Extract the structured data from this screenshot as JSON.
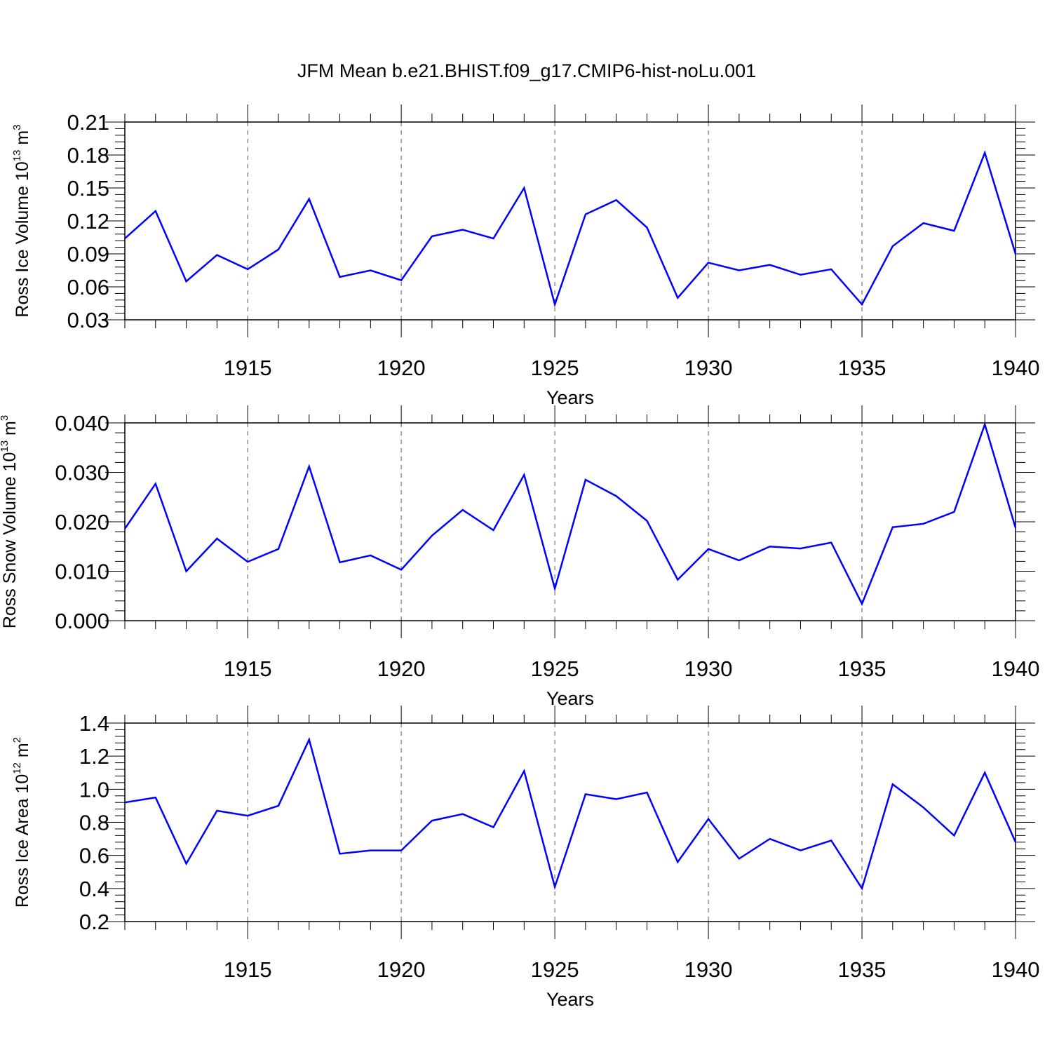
{
  "figure": {
    "title": "JFM Mean b.e21.BHIST.f09_g17.CMIP6-hist-noLu.001"
  },
  "chart_data": [
    {
      "type": "line",
      "ylabel": {
        "prefix": "Ross Ice Volume 10",
        "exp": "13",
        "unit": " m",
        "unit_exp": "3"
      },
      "xlabel": "Years",
      "xlim": [
        1911,
        1940
      ],
      "ylim": [
        0.03,
        0.21
      ],
      "xticks": [
        1915,
        1920,
        1925,
        1930,
        1935,
        1940
      ],
      "yticks": [
        "0.03",
        "0.06",
        "0.09",
        "0.12",
        "0.15",
        "0.18",
        "0.21"
      ],
      "ytick_values": [
        0.03,
        0.06,
        0.09,
        0.12,
        0.15,
        0.18,
        0.21
      ],
      "grid": "vertical dashed at labelled years",
      "color": "#0000ff",
      "x": [
        1911,
        1912,
        1913,
        1914,
        1915,
        1916,
        1917,
        1918,
        1919,
        1920,
        1921,
        1922,
        1923,
        1924,
        1925,
        1926,
        1927,
        1928,
        1929,
        1930,
        1931,
        1932,
        1933,
        1934,
        1935,
        1936,
        1937,
        1938,
        1939,
        1940
      ],
      "values": [
        0.104,
        0.129,
        0.065,
        0.089,
        0.076,
        0.094,
        0.14,
        0.069,
        0.075,
        0.066,
        0.106,
        0.112,
        0.104,
        0.15,
        0.044,
        0.126,
        0.139,
        0.114,
        0.05,
        0.082,
        0.075,
        0.08,
        0.071,
        0.076,
        0.044,
        0.097,
        0.118,
        0.111,
        0.182,
        0.09
      ]
    },
    {
      "type": "line",
      "ylabel": {
        "prefix": "Ross Snow Volume 10",
        "exp": "13",
        "unit": " m",
        "unit_exp": "3"
      },
      "xlabel": "Years",
      "xlim": [
        1911,
        1940
      ],
      "ylim": [
        0.0,
        0.04
      ],
      "xticks": [
        1915,
        1920,
        1925,
        1930,
        1935,
        1940
      ],
      "yticks": [
        "0.000",
        "0.010",
        "0.020",
        "0.030",
        "0.040"
      ],
      "ytick_values": [
        0.0,
        0.01,
        0.02,
        0.03,
        0.04
      ],
      "grid": "vertical dashed at labelled years",
      "color": "#0000ff",
      "x": [
        1911,
        1912,
        1913,
        1914,
        1915,
        1916,
        1917,
        1918,
        1919,
        1920,
        1921,
        1922,
        1923,
        1924,
        1925,
        1926,
        1927,
        1928,
        1929,
        1930,
        1931,
        1932,
        1933,
        1934,
        1935,
        1936,
        1937,
        1938,
        1939,
        1940
      ],
      "values": [
        0.0186,
        0.0277,
        0.01,
        0.0166,
        0.0119,
        0.0145,
        0.0312,
        0.0118,
        0.0132,
        0.0103,
        0.0172,
        0.0224,
        0.0183,
        0.0295,
        0.0065,
        0.0285,
        0.0252,
        0.0202,
        0.0083,
        0.0145,
        0.0122,
        0.015,
        0.0146,
        0.0158,
        0.0034,
        0.0189,
        0.0196,
        0.022,
        0.0397,
        0.0188
      ]
    },
    {
      "type": "line",
      "ylabel": {
        "prefix": "Ross Ice Area 10",
        "exp": "12",
        "unit": " m",
        "unit_exp": "2"
      },
      "xlabel": "Years",
      "xlim": [
        1911,
        1940
      ],
      "ylim": [
        0.2,
        1.4
      ],
      "xticks": [
        1915,
        1920,
        1925,
        1930,
        1935,
        1940
      ],
      "yticks": [
        "0.2",
        "0.4",
        "0.6",
        "0.8",
        "1.0",
        "1.2",
        "1.4"
      ],
      "ytick_values": [
        0.2,
        0.4,
        0.6,
        0.8,
        1.0,
        1.2,
        1.4
      ],
      "grid": "vertical dashed at labelled years",
      "color": "#0000ff",
      "x": [
        1911,
        1912,
        1913,
        1914,
        1915,
        1916,
        1917,
        1918,
        1919,
        1920,
        1921,
        1922,
        1923,
        1924,
        1925,
        1926,
        1927,
        1928,
        1929,
        1930,
        1931,
        1932,
        1933,
        1934,
        1935,
        1936,
        1937,
        1938,
        1939,
        1940
      ],
      "values": [
        0.92,
        0.95,
        0.55,
        0.87,
        0.84,
        0.9,
        1.3,
        0.61,
        0.63,
        0.63,
        0.81,
        0.85,
        0.77,
        1.11,
        0.41,
        0.97,
        0.94,
        0.98,
        0.56,
        0.82,
        0.58,
        0.7,
        0.63,
        0.69,
        0.4,
        1.03,
        0.89,
        0.72,
        1.1,
        0.68
      ]
    }
  ]
}
